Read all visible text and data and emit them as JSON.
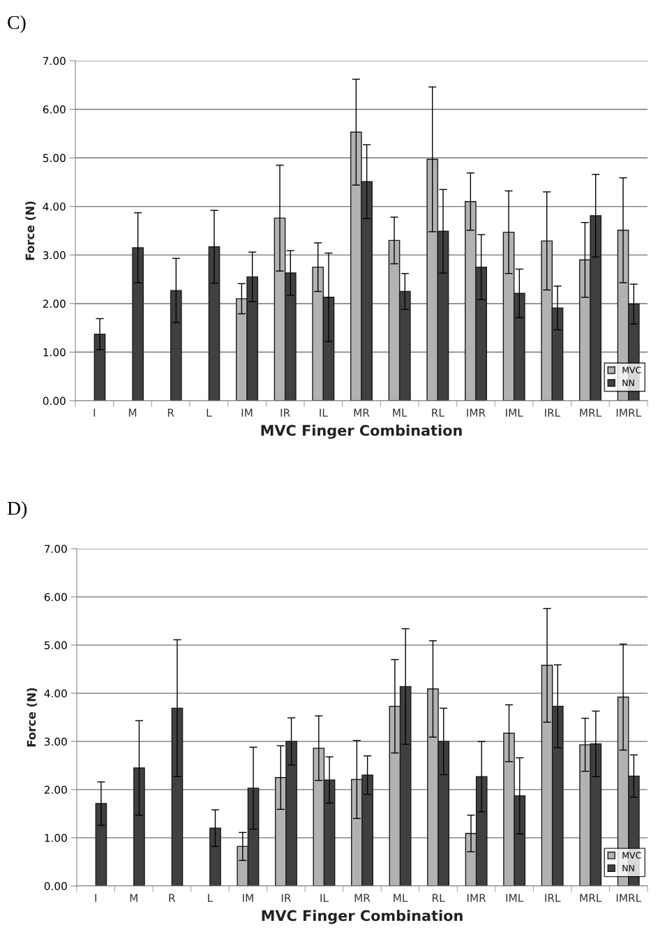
{
  "chart_data": [
    {
      "type": "bar",
      "title": "C)",
      "xlabel": "MVC Finger Combination",
      "ylabel": "Force (N)",
      "categories": [
        "I",
        "M",
        "R",
        "L",
        "IM",
        "IR",
        "IL",
        "MR",
        "ML",
        "RL",
        "IMR",
        "IML",
        "IRL",
        "MRL",
        "IMRL"
      ],
      "series": [
        {
          "name": "MVC",
          "color": "#b2b2b2",
          "values": [
            null,
            null,
            null,
            null,
            2.1,
            3.76,
            2.75,
            5.53,
            3.3,
            4.97,
            4.1,
            3.47,
            3.29,
            2.9,
            3.51
          ],
          "errors": [
            null,
            null,
            null,
            null,
            0.31,
            1.09,
            0.5,
            1.09,
            0.48,
            1.49,
            0.59,
            0.85,
            1.01,
            0.77,
            1.08
          ]
        },
        {
          "name": "NN",
          "color": "#404040",
          "values": [
            1.37,
            3.15,
            2.27,
            3.17,
            2.55,
            2.63,
            2.13,
            4.51,
            2.25,
            3.49,
            2.75,
            2.21,
            1.91,
            3.81,
            1.99
          ],
          "errors": [
            0.32,
            0.72,
            0.66,
            0.75,
            0.51,
            0.46,
            0.91,
            0.76,
            0.37,
            0.86,
            0.67,
            0.5,
            0.45,
            0.85,
            0.41
          ]
        }
      ],
      "ylim": [
        0,
        7
      ],
      "yticks": [
        {
          "value": 0,
          "label": "0.00"
        },
        {
          "value": 1,
          "label": "1.00"
        },
        {
          "value": 2,
          "label": "2.00"
        },
        {
          "value": 3,
          "label": "3.00"
        },
        {
          "value": 4,
          "label": "4.00"
        },
        {
          "value": 5,
          "label": "5.00"
        },
        {
          "value": 6,
          "label": "6.00"
        },
        {
          "value": 7,
          "label": "7.00"
        }
      ],
      "grid": "y",
      "legend": "bottom right"
    },
    {
      "type": "bar",
      "title": "D)",
      "xlabel": "MVC Finger Combination",
      "ylabel": "Force (N)",
      "categories": [
        "I",
        "M",
        "R",
        "L",
        "IM",
        "IR",
        "IL",
        "MR",
        "ML",
        "RL",
        "IMR",
        "IML",
        "IRL",
        "MRL",
        "IMRL"
      ],
      "series": [
        {
          "name": "MVC",
          "color": "#b2b2b2",
          "values": [
            null,
            null,
            null,
            null,
            0.82,
            2.25,
            2.86,
            2.21,
            3.73,
            4.09,
            1.09,
            3.17,
            4.58,
            2.93,
            3.92
          ],
          "errors": [
            null,
            null,
            null,
            null,
            0.29,
            0.66,
            0.67,
            0.81,
            0.97,
            1.0,
            0.38,
            0.59,
            1.18,
            0.55,
            1.1
          ]
        },
        {
          "name": "NN",
          "color": "#404040",
          "values": [
            1.71,
            2.45,
            3.69,
            1.2,
            2.03,
            3.0,
            2.2,
            2.3,
            4.14,
            3.0,
            2.27,
            1.87,
            3.73,
            2.95,
            2.28
          ],
          "errors": [
            0.45,
            0.98,
            1.42,
            0.38,
            0.85,
            0.49,
            0.48,
            0.4,
            1.2,
            0.69,
            0.73,
            0.79,
            0.86,
            0.68,
            0.44
          ]
        }
      ],
      "ylim": [
        0,
        7
      ],
      "yticks": [
        {
          "value": 0,
          "label": "0.00"
        },
        {
          "value": 1,
          "label": "1.00"
        },
        {
          "value": 2,
          "label": "2.00"
        },
        {
          "value": 3,
          "label": "3.00"
        },
        {
          "value": 4,
          "label": "4.00"
        },
        {
          "value": 5,
          "label": "5.00"
        },
        {
          "value": 6,
          "label": "6.00"
        },
        {
          "value": 7,
          "label": "7.00"
        }
      ],
      "grid": "y",
      "legend": "bottom right"
    }
  ]
}
